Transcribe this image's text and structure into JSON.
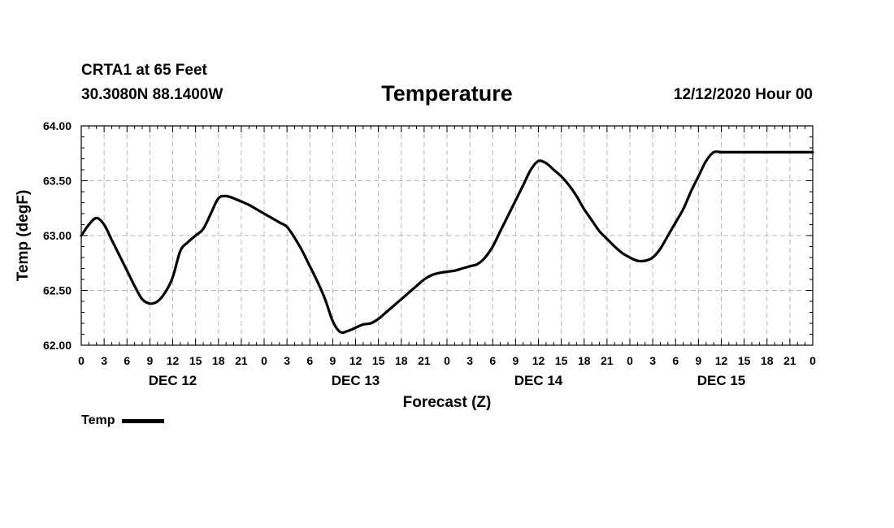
{
  "header": {
    "station": "CRTA1 at 65 Feet",
    "coords": "30.3080N 88.1400W",
    "issued": "12/12/2020 Hour 00"
  },
  "chart_data": {
    "type": "line",
    "title": "Temperature",
    "xlabel": "Forecast (Z)",
    "ylabel": "Temp (degF)",
    "x_unit": "forecast hour",
    "xlim": [
      0,
      96
    ],
    "ylim": [
      62.0,
      64.0
    ],
    "y_ticks": [
      "62.00",
      "62.50",
      "63.00",
      "63.50",
      "64.00"
    ],
    "x_ticks": [
      {
        "hour": 0,
        "label": "0"
      },
      {
        "hour": 3,
        "label": "3"
      },
      {
        "hour": 6,
        "label": "6"
      },
      {
        "hour": 9,
        "label": "9"
      },
      {
        "hour": 12,
        "label": "12"
      },
      {
        "hour": 15,
        "label": "15"
      },
      {
        "hour": 18,
        "label": "18"
      },
      {
        "hour": 21,
        "label": "21"
      },
      {
        "hour": 24,
        "label": "0"
      },
      {
        "hour": 27,
        "label": "3"
      },
      {
        "hour": 30,
        "label": "6"
      },
      {
        "hour": 33,
        "label": "9"
      },
      {
        "hour": 36,
        "label": "12"
      },
      {
        "hour": 39,
        "label": "15"
      },
      {
        "hour": 42,
        "label": "18"
      },
      {
        "hour": 45,
        "label": "21"
      },
      {
        "hour": 48,
        "label": "0"
      },
      {
        "hour": 51,
        "label": "3"
      },
      {
        "hour": 54,
        "label": "6"
      },
      {
        "hour": 57,
        "label": "9"
      },
      {
        "hour": 60,
        "label": "12"
      },
      {
        "hour": 63,
        "label": "15"
      },
      {
        "hour": 66,
        "label": "18"
      },
      {
        "hour": 69,
        "label": "21"
      },
      {
        "hour": 72,
        "label": "0"
      },
      {
        "hour": 75,
        "label": "3"
      },
      {
        "hour": 78,
        "label": "6"
      },
      {
        "hour": 81,
        "label": "9"
      },
      {
        "hour": 84,
        "label": "12"
      },
      {
        "hour": 87,
        "label": "15"
      },
      {
        "hour": 90,
        "label": "18"
      },
      {
        "hour": 93,
        "label": "21"
      },
      {
        "hour": 96,
        "label": "0"
      }
    ],
    "day_labels": [
      {
        "hour": 12,
        "label": "DEC 12"
      },
      {
        "hour": 36,
        "label": "DEC 13"
      },
      {
        "hour": 60,
        "label": "DEC 14"
      },
      {
        "hour": 84,
        "label": "DEC 15"
      }
    ],
    "grid": true,
    "legend_position": "bottom-left",
    "series": [
      {
        "name": "Temp",
        "color": "#000000",
        "x": [
          0,
          1,
          2,
          3,
          4,
          5,
          6,
          7,
          8,
          9,
          10,
          11,
          12,
          13,
          14,
          15,
          16,
          17,
          18,
          19,
          20,
          21,
          22,
          23,
          24,
          25,
          26,
          27,
          28,
          29,
          30,
          31,
          32,
          33,
          34,
          35,
          36,
          37,
          38,
          39,
          40,
          41,
          42,
          43,
          44,
          45,
          46,
          47,
          48,
          49,
          50,
          51,
          52,
          53,
          54,
          55,
          56,
          57,
          58,
          59,
          60,
          61,
          62,
          63,
          64,
          65,
          66,
          67,
          68,
          69,
          70,
          71,
          72,
          73,
          74,
          75,
          76,
          77,
          78,
          79,
          80,
          81,
          82,
          83,
          84,
          85,
          86,
          87,
          88,
          89,
          90,
          91,
          92,
          93,
          94,
          95,
          96
        ],
        "y": [
          63.0,
          63.1,
          63.16,
          63.1,
          62.96,
          62.82,
          62.68,
          62.54,
          62.42,
          62.38,
          62.4,
          62.48,
          62.62,
          62.86,
          62.94,
          63.0,
          63.06,
          63.2,
          63.34,
          63.36,
          63.34,
          63.31,
          63.28,
          63.24,
          63.2,
          63.16,
          63.12,
          63.08,
          62.98,
          62.86,
          62.72,
          62.58,
          62.42,
          62.22,
          62.12,
          62.13,
          62.16,
          62.19,
          62.2,
          62.24,
          62.3,
          62.36,
          62.42,
          62.48,
          62.54,
          62.6,
          62.64,
          62.66,
          62.67,
          62.68,
          62.7,
          62.72,
          62.74,
          62.8,
          62.9,
          63.04,
          63.18,
          63.32,
          63.46,
          63.6,
          63.68,
          63.66,
          63.6,
          63.54,
          63.46,
          63.36,
          63.24,
          63.14,
          63.04,
          62.97,
          62.9,
          62.84,
          62.8,
          62.77,
          62.77,
          62.8,
          62.88,
          63.0,
          63.12,
          63.24,
          63.4,
          63.54,
          63.68,
          63.76,
          63.76,
          63.76,
          63.76,
          63.76,
          63.76,
          63.76,
          63.76,
          63.76,
          63.76,
          63.76,
          63.76,
          63.76,
          63.76
        ]
      }
    ]
  }
}
